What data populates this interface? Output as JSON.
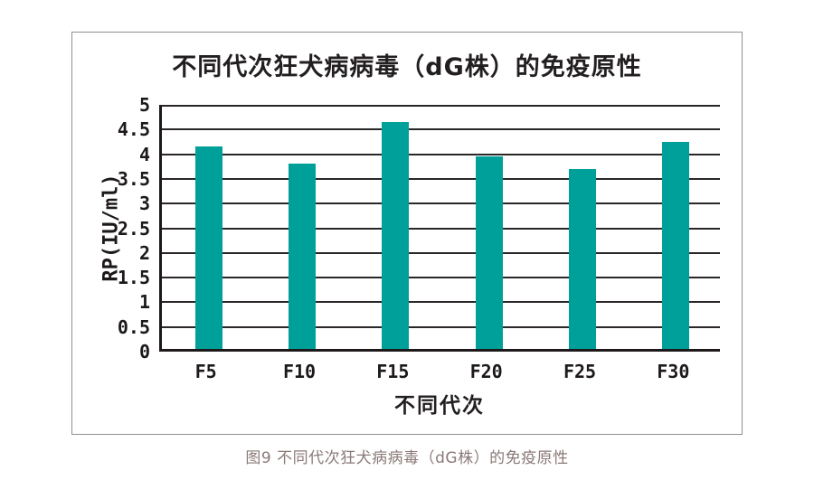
{
  "figure": {
    "caption": "图9 不同代次狂犬病病毒（dG株）的免疫原性"
  },
  "chart_data": {
    "type": "bar",
    "title": "不同代次狂犬病病毒（dG株）的免疫原性",
    "categories": [
      "F5",
      "F10",
      "F15",
      "F20",
      "F25",
      "F30"
    ],
    "values": [
      4.1,
      3.75,
      4.6,
      3.9,
      3.65,
      4.2
    ],
    "xlabel": "不同代次",
    "ylabel": "RP(IU/ml)",
    "ylim": [
      0,
      5
    ],
    "ytick_step": 0.5,
    "yticks": [
      "0",
      "0.5",
      "1",
      "1.5",
      "2",
      "2.5",
      "3",
      "3.5",
      "4",
      "4.5",
      "5"
    ],
    "grid": true,
    "legend": "none",
    "bar_color": "#00A09A",
    "gridline_color": "#2b2728",
    "axis_color": "#1d191a"
  }
}
